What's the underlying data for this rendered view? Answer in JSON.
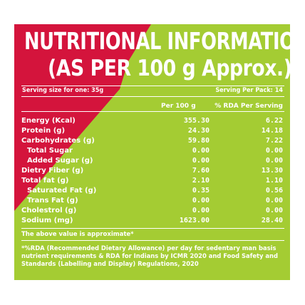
{
  "title": {
    "line1": "NUTRITIONAL INFORMATION",
    "line2": "(AS PER 100 g Approx.)"
  },
  "serving": {
    "size_label": "Serving size for one: 35g",
    "per_pack_label": "Serving Per Pack: 14"
  },
  "columns": {
    "per100": "Per 100 g",
    "rda": "% RDA Per Serving"
  },
  "rows": [
    {
      "label": "Energy (Kcal)",
      "per100": "355.30",
      "rda": "6.22"
    },
    {
      "label": "Protein (g)",
      "per100": "24.30",
      "rda": "14.18"
    },
    {
      "label": "Carbohydrates (g)",
      "per100": "59.80",
      "rda": "7.22"
    },
    {
      "label": "Total Sugar",
      "per100": "0.00",
      "rda": "0.00"
    },
    {
      "label": "Added Sugar (g)",
      "per100": "0.00",
      "rda": "0.00"
    },
    {
      "label": "Dietry Fiber (g)",
      "per100": "7.60",
      "rda": "13.30"
    },
    {
      "label": "Total fat (g)",
      "per100": "2.10",
      "rda": "1.10"
    },
    {
      "label": "Saturated Fat (g)",
      "per100": "0.35",
      "rda": "0.56"
    },
    {
      "label": "Trans Fat (g)",
      "per100": "0.00",
      "rda": "0.00"
    },
    {
      "label": "Cholestrol (g)",
      "per100": "0.00",
      "rda": "0.00"
    },
    {
      "label": "Sodium (mg)",
      "per100": "1623.00",
      "rda": "28.40"
    }
  ],
  "note": "The above value is approximate*",
  "footnote": "*%RDA (Recommended Dietary Allowance) per day for sedentary man basis nutrient requirements & RDA for Indians by ICMR 2020 and Food Safety and Standards (Labelling and Display) Regulations, 2020",
  "colors": {
    "green": "#a4cc33",
    "red": "#d4143c",
    "text": "#ffffff"
  }
}
